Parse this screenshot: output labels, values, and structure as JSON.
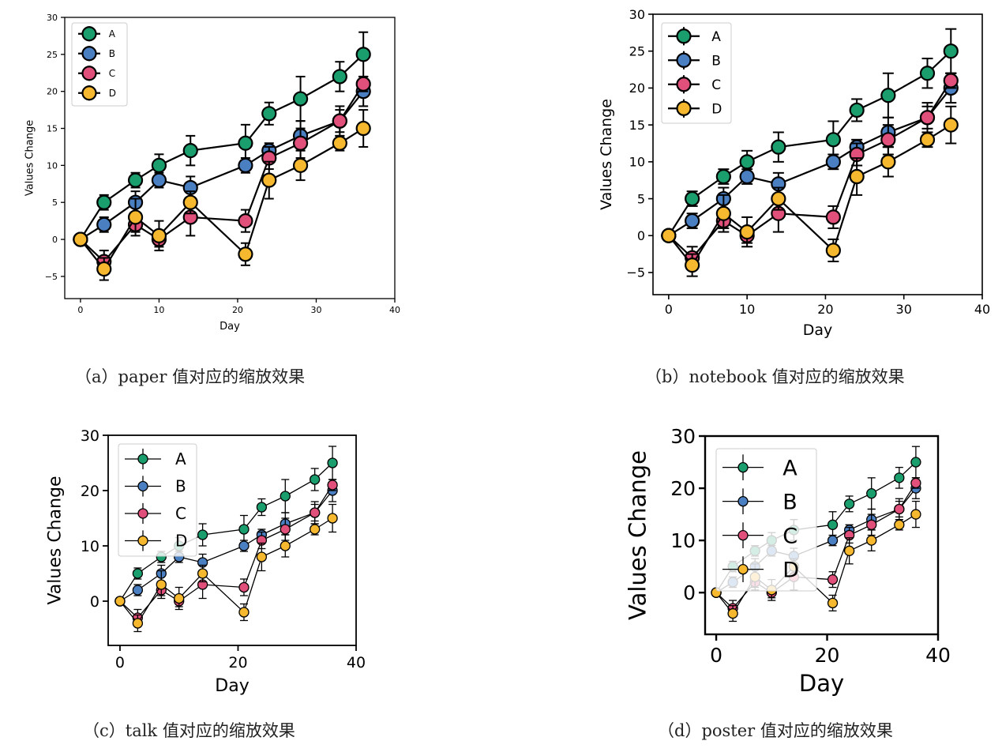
{
  "colors": {
    "A": "#1a9e6e",
    "B": "#4a7fc1",
    "C": "#e0507a",
    "D": "#f5b82e",
    "line": "#000000"
  },
  "captions": [
    "（a）paper 值对应的缩放效果",
    "（b）notebook 值对应的缩放效果",
    "（c）talk 值对应的缩放效果",
    "（d）poster 值对应的缩放效果"
  ],
  "chart_data": [
    {
      "type": "line",
      "context": "paper",
      "xlabel": "Day",
      "ylabel": "Values Change",
      "xlim": [
        -2,
        40
      ],
      "ylim": [
        -8,
        30
      ],
      "xticks": [
        0,
        10,
        20,
        30,
        40
      ],
      "yticks": [
        -5,
        0,
        5,
        10,
        15,
        20,
        25,
        30
      ],
      "legend": "top-left",
      "x": [
        0,
        3,
        7,
        10,
        14,
        21,
        24,
        28,
        33,
        36
      ],
      "series": [
        {
          "name": "A",
          "values": [
            0,
            5,
            8,
            10,
            12,
            13,
            17,
            19,
            22,
            25
          ],
          "err": [
            0,
            1,
            1,
            1.5,
            2,
            2.5,
            1.5,
            3,
            2,
            3
          ]
        },
        {
          "name": "B",
          "values": [
            0,
            2,
            5,
            8,
            7,
            10,
            12,
            14,
            16,
            20
          ],
          "err": [
            0,
            1,
            1.5,
            1,
            1.5,
            1,
            1,
            2,
            1.5,
            2
          ]
        },
        {
          "name": "C",
          "values": [
            0,
            -3,
            2,
            0,
            3,
            2.5,
            11,
            13,
            16,
            21
          ],
          "err": [
            0,
            1.5,
            1,
            1,
            2.5,
            1.5,
            1.5,
            2,
            2,
            1
          ]
        },
        {
          "name": "D",
          "values": [
            0,
            -4,
            3,
            0.5,
            5,
            -2,
            8,
            10,
            13,
            15
          ],
          "err": [
            0,
            1.5,
            2.5,
            2,
            1.5,
            1.5,
            2.5,
            2,
            1,
            2.5
          ]
        }
      ]
    },
    {
      "type": "line",
      "context": "notebook",
      "xlabel": "Day",
      "ylabel": "Values Change",
      "xlim": [
        -2,
        40
      ],
      "ylim": [
        -8,
        30
      ],
      "xticks": [
        0,
        10,
        20,
        30,
        40
      ],
      "yticks": [
        -5,
        0,
        5,
        10,
        15,
        20,
        25,
        30
      ],
      "legend": "top-left",
      "x": [
        0,
        3,
        7,
        10,
        14,
        21,
        24,
        28,
        33,
        36
      ],
      "series": [
        {
          "name": "A",
          "values": [
            0,
            5,
            8,
            10,
            12,
            13,
            17,
            19,
            22,
            25
          ],
          "err": [
            0,
            1,
            1,
            1.5,
            2,
            2.5,
            1.5,
            3,
            2,
            3
          ]
        },
        {
          "name": "B",
          "values": [
            0,
            2,
            5,
            8,
            7,
            10,
            12,
            14,
            16,
            20
          ],
          "err": [
            0,
            1,
            1.5,
            1,
            1.5,
            1,
            1,
            2,
            1.5,
            2
          ]
        },
        {
          "name": "C",
          "values": [
            0,
            -3,
            2,
            0,
            3,
            2.5,
            11,
            13,
            16,
            21
          ],
          "err": [
            0,
            1.5,
            1,
            1,
            2.5,
            1.5,
            1.5,
            2,
            2,
            1
          ]
        },
        {
          "name": "D",
          "values": [
            0,
            -4,
            3,
            0.5,
            5,
            -2,
            8,
            10,
            13,
            15
          ],
          "err": [
            0,
            1.5,
            2.5,
            2,
            1.5,
            1.5,
            2.5,
            2,
            1,
            2.5
          ]
        }
      ]
    },
    {
      "type": "line",
      "context": "talk",
      "xlabel": "Day",
      "ylabel": "Values Change",
      "xlim": [
        -2,
        40
      ],
      "ylim": [
        -8,
        30
      ],
      "xticks": [
        0,
        20,
        40
      ],
      "yticks": [
        0,
        10,
        20,
        30
      ],
      "legend": "top-left",
      "x": [
        0,
        3,
        7,
        10,
        14,
        21,
        24,
        28,
        33,
        36
      ],
      "series": [
        {
          "name": "A",
          "values": [
            0,
            5,
            8,
            10,
            12,
            13,
            17,
            19,
            22,
            25
          ],
          "err": [
            0,
            1,
            1,
            1.5,
            2,
            2.5,
            1.5,
            3,
            2,
            3
          ]
        },
        {
          "name": "B",
          "values": [
            0,
            2,
            5,
            8,
            7,
            10,
            12,
            14,
            16,
            20
          ],
          "err": [
            0,
            1,
            1.5,
            1,
            1.5,
            1,
            1,
            2,
            1.5,
            2
          ]
        },
        {
          "name": "C",
          "values": [
            0,
            -3,
            2,
            0,
            3,
            2.5,
            11,
            13,
            16,
            21
          ],
          "err": [
            0,
            1.5,
            1,
            1,
            2.5,
            1.5,
            1.5,
            2,
            2,
            1
          ]
        },
        {
          "name": "D",
          "values": [
            0,
            -4,
            3,
            0.5,
            5,
            -2,
            8,
            10,
            13,
            15
          ],
          "err": [
            0,
            1.5,
            2.5,
            2,
            1.5,
            1.5,
            2.5,
            2,
            1,
            2.5
          ]
        }
      ]
    },
    {
      "type": "line",
      "context": "poster",
      "xlabel": "Day",
      "ylabel": "Values Change",
      "xlim": [
        -2,
        40
      ],
      "ylim": [
        -8,
        30
      ],
      "xticks": [
        0,
        20,
        40
      ],
      "yticks": [
        0,
        10,
        20,
        30
      ],
      "legend": "top-left",
      "x": [
        0,
        3,
        7,
        10,
        14,
        21,
        24,
        28,
        33,
        36
      ],
      "series": [
        {
          "name": "A",
          "values": [
            0,
            5,
            8,
            10,
            12,
            13,
            17,
            19,
            22,
            25
          ],
          "err": [
            0,
            1,
            1,
            1.5,
            2,
            2.5,
            1.5,
            3,
            2,
            3
          ]
        },
        {
          "name": "B",
          "values": [
            0,
            2,
            5,
            8,
            7,
            10,
            12,
            14,
            16,
            20
          ],
          "err": [
            0,
            1,
            1.5,
            1,
            1.5,
            1,
            1,
            2,
            1.5,
            2
          ]
        },
        {
          "name": "C",
          "values": [
            0,
            -3,
            2,
            0,
            3,
            2.5,
            11,
            13,
            16,
            21
          ],
          "err": [
            0,
            1.5,
            1,
            1,
            2.5,
            1.5,
            1.5,
            2,
            2,
            1
          ]
        },
        {
          "name": "D",
          "values": [
            0,
            -4,
            3,
            0.5,
            5,
            -2,
            8,
            10,
            13,
            15
          ],
          "err": [
            0,
            1.5,
            2.5,
            2,
            1.5,
            1.5,
            2.5,
            2,
            1,
            2.5
          ]
        }
      ]
    }
  ]
}
